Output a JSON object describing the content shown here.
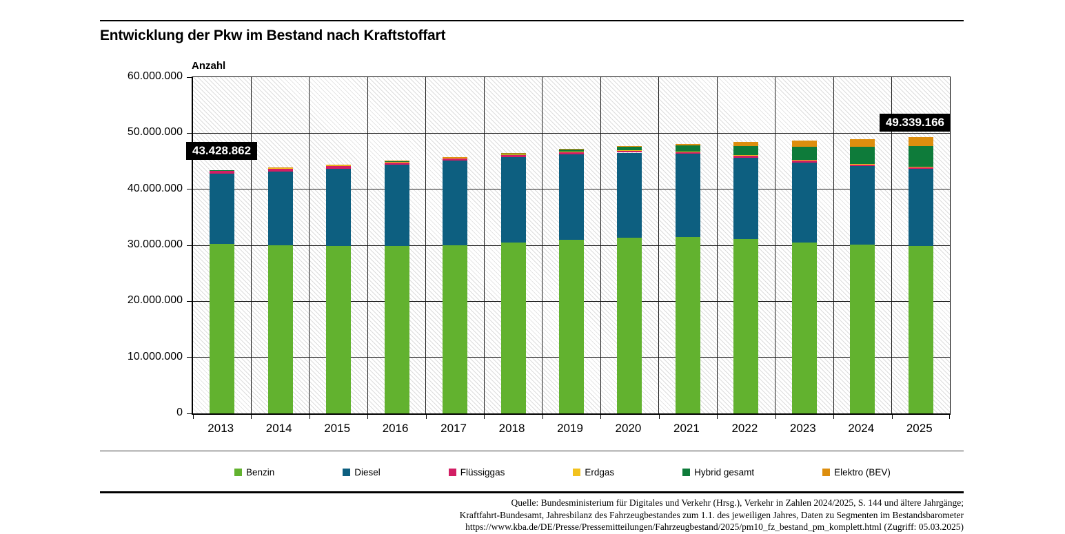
{
  "header": {
    "title": "Entwicklung der Pkw im Bestand nach Kraftstoffart"
  },
  "chart": {
    "y_axis_title": "Anzahl",
    "y_tick_labels": [
      "60.000.000",
      "50.000.000",
      "40.000.000",
      "30.000.000",
      "20.000.000",
      "10.000.000",
      "0"
    ],
    "callouts": {
      "first": {
        "year": "2013",
        "label": "43.428.862"
      },
      "last": {
        "year": "2025",
        "label": "49.339.166"
      }
    }
  },
  "chart_data": {
    "type": "bar",
    "stacked": true,
    "title": "Entwicklung der Pkw im Bestand nach Kraftstoffart",
    "xlabel": "",
    "ylabel": "Anzahl",
    "ylim": [
      0,
      60000000
    ],
    "y_tick_step": 10000000,
    "grid": true,
    "legend_position": "bottom",
    "categories": [
      2013,
      2014,
      2015,
      2016,
      2017,
      2018,
      2019,
      2020,
      2021,
      2022,
      2023,
      2024,
      2025
    ],
    "series": [
      {
        "name": "Benzin",
        "color": "#62b22f",
        "values": [
          30250000,
          29990000,
          29840000,
          29830000,
          29980000,
          30450000,
          31030000,
          31400000,
          31500000,
          31150000,
          30550000,
          30150000,
          29900000
        ]
      },
      {
        "name": "Diesel",
        "color": "#0d5f80",
        "values": [
          12570000,
          13220000,
          13860000,
          14530000,
          15090000,
          15230000,
          15230000,
          15140000,
          14840000,
          14500000,
          14250000,
          13940000,
          13750000
        ]
      },
      {
        "name": "Flüssiggas",
        "color": "#d21e64",
        "values": [
          456000,
          500000,
          494000,
          475000,
          448000,
          421000,
          396000,
          372000,
          351000,
          345000,
          331000,
          319000,
          306000
        ]
      },
      {
        "name": "Erdgas",
        "color": "#f2c21e",
        "values": [
          76000,
          79000,
          81000,
          80000,
          77000,
          75000,
          81000,
          82000,
          83000,
          83000,
          81000,
          77000,
          72000
        ]
      },
      {
        "name": "Hybrid gesamt",
        "color": "#0e7b3a",
        "values": [
          65000,
          85000,
          107000,
          130000,
          165000,
          237000,
          341000,
          539000,
          1004000,
          1689000,
          2405000,
          3100000,
          3660000
        ]
      },
      {
        "name": "Elektro (BEV)",
        "color": "#dd8e0e",
        "values": [
          7000,
          12000,
          19000,
          25000,
          34000,
          54000,
          83000,
          136000,
          309000,
          618000,
          1013000,
          1409000,
          1651000
        ]
      }
    ],
    "annotations": [
      {
        "category": 2013,
        "text": "43.428.862"
      },
      {
        "category": 2025,
        "text": "49.339.166"
      }
    ]
  },
  "legend": {
    "items": [
      {
        "label": "Benzin",
        "color": "#62b22f"
      },
      {
        "label": "Diesel",
        "color": "#0d5f80"
      },
      {
        "label": "Flüssiggas",
        "color": "#d21e64"
      },
      {
        "label": "Erdgas",
        "color": "#f2c21e"
      },
      {
        "label": "Hybrid gesamt",
        "color": "#0e7b3a"
      },
      {
        "label": "Elektro (BEV)",
        "color": "#dd8e0e"
      }
    ]
  },
  "footer": {
    "source_lines": [
      "Quelle: Bundesministerium für Digitales und Verkehr (Hrsg.), Verkehr in Zahlen 2024/2025, S. 144 und ältere Jahrgänge;",
      "Kraftfahrt-Bundesamt, Jahresbilanz des Fahrzeugbestandes zum 1.1. des jeweiligen Jahres, Daten zu Segmenten im Bestandsbarometer",
      "https://www.kba.de/DE/Presse/Pressemitteilungen/Fahrzeugbestand/2025/pm10_fz_bestand_pm_komplett.html (Zugriff: 05.03.2025)"
    ]
  }
}
